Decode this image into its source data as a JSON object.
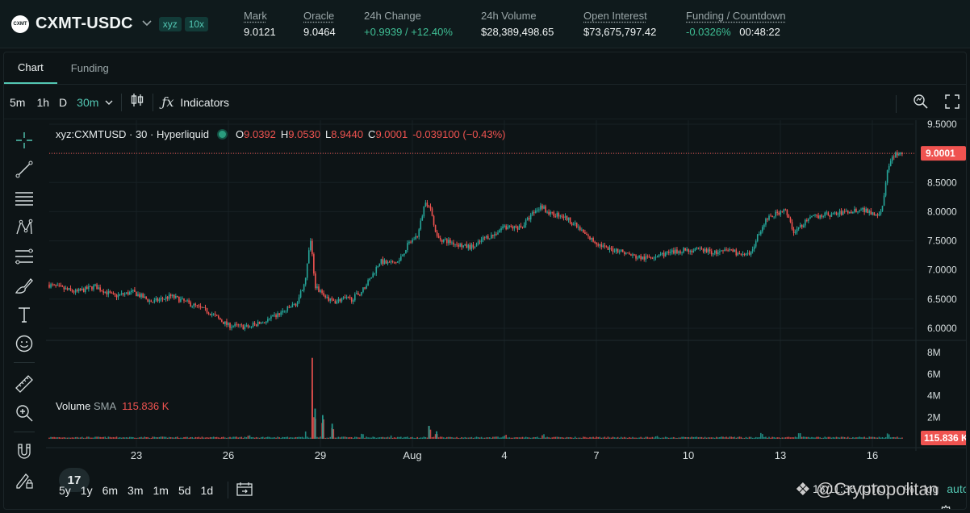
{
  "header": {
    "coin_logo_text": "CXMT",
    "pair": "CXMT-USDC",
    "badges": [
      "xyz",
      "10x"
    ],
    "stats": [
      {
        "label": "Mark",
        "value": "9.0121",
        "underline": true,
        "positive": false
      },
      {
        "label": "Oracle",
        "value": "9.0464",
        "underline": true,
        "positive": false
      },
      {
        "label": "24h Change",
        "value": "+0.9939 / +12.40%",
        "underline": false,
        "positive": true
      },
      {
        "label": "24h Volume",
        "value": "$28,389,498.65",
        "underline": false,
        "positive": false
      },
      {
        "label": "Open Interest",
        "value": "$73,675,797.42",
        "underline": true,
        "positive": false
      },
      {
        "label": "Funding / Countdown",
        "value_rate": "-0.0326%",
        "value_countdown": "00:48:22",
        "underline": true,
        "positive": true
      }
    ]
  },
  "tabs": [
    {
      "label": "Chart",
      "active": true
    },
    {
      "label": "Funding",
      "active": false
    }
  ],
  "toolbar": {
    "timeframes": [
      "5m",
      "1h",
      "D",
      "30m"
    ],
    "active_timeframe": "30m",
    "indicators_label": "Indicators"
  },
  "legend": {
    "symbol": "xyz:CXMTUSD · 30 · Hyperliquid",
    "o_label": "O",
    "o": "9.0392",
    "h_label": "H",
    "h": "9.0530",
    "l_label": "L",
    "l": "8.9440",
    "c_label": "C",
    "c": "9.0001",
    "change": "-0.039100 (−0.43%)"
  },
  "volume_legend": {
    "label": "Volume",
    "sma_label": "SMA",
    "value": "115.836 K"
  },
  "tv_logo": "17",
  "bottom": {
    "ranges": [
      "5y",
      "1y",
      "6m",
      "3m",
      "1m",
      "5d",
      "1d"
    ],
    "time": "18:11:36 (UTC)",
    "percent": "%",
    "log": "log",
    "auto": "auto"
  },
  "watermark": "@Cryptopolitan",
  "colors": {
    "up": "#26a69a",
    "down": "#ef5350",
    "accent": "#53c7b3",
    "price_line": "#ef5350"
  },
  "chart_data": {
    "type": "candlestick",
    "symbol": "xyz:CXMTUSD",
    "interval": "30",
    "x_ticks": [
      "23",
      "26",
      "29",
      "Aug",
      "4",
      "7",
      "10",
      "13",
      "16"
    ],
    "y_ticks": [
      "9.5000",
      "9.0000",
      "8.5000",
      "8.0000",
      "7.5000",
      "7.0000",
      "6.5000",
      "6.0000"
    ],
    "ylim": [
      5.85,
      9.55
    ],
    "last_price": "9.0001",
    "price_path": [
      [
        0.0,
        6.75
      ],
      [
        1.5,
        6.62
      ],
      [
        2.5,
        6.72
      ],
      [
        3.5,
        6.55
      ],
      [
        4.5,
        6.62
      ],
      [
        5.5,
        6.45
      ],
      [
        6.5,
        6.55
      ],
      [
        7.5,
        6.42
      ],
      [
        8.5,
        6.28
      ],
      [
        9.5,
        6.05
      ],
      [
        10.5,
        6.02
      ],
      [
        11.5,
        6.12
      ],
      [
        12.5,
        6.3
      ],
      [
        13.2,
        6.45
      ],
      [
        13.6,
        6.9
      ],
      [
        13.85,
        7.55
      ],
      [
        14.1,
        6.7
      ],
      [
        14.5,
        6.6
      ],
      [
        15.0,
        6.45
      ],
      [
        15.5,
        6.5
      ],
      [
        16.0,
        6.5
      ],
      [
        16.5,
        6.62
      ],
      [
        17.0,
        6.85
      ],
      [
        17.5,
        7.15
      ],
      [
        18.0,
        7.1
      ],
      [
        18.5,
        7.15
      ],
      [
        19.0,
        7.45
      ],
      [
        19.5,
        7.6
      ],
      [
        19.9,
        8.2
      ],
      [
        20.2,
        8.0
      ],
      [
        20.5,
        7.55
      ],
      [
        21.0,
        7.5
      ],
      [
        21.5,
        7.45
      ],
      [
        22.0,
        7.4
      ],
      [
        22.5,
        7.4
      ],
      [
        23.0,
        7.55
      ],
      [
        23.5,
        7.6
      ],
      [
        24.0,
        7.75
      ],
      [
        24.5,
        7.72
      ],
      [
        25.0,
        7.75
      ],
      [
        25.5,
        7.95
      ],
      [
        26.0,
        8.1
      ],
      [
        26.5,
        7.95
      ],
      [
        27.0,
        7.95
      ],
      [
        27.5,
        7.85
      ],
      [
        28.0,
        7.7
      ],
      [
        28.5,
        7.55
      ],
      [
        29.0,
        7.45
      ],
      [
        29.5,
        7.35
      ],
      [
        30.0,
        7.35
      ],
      [
        30.5,
        7.28
      ],
      [
        31.0,
        7.22
      ],
      [
        31.5,
        7.2
      ],
      [
        32.0,
        7.25
      ],
      [
        32.5,
        7.28
      ],
      [
        33.0,
        7.3
      ],
      [
        33.5,
        7.35
      ],
      [
        34.0,
        7.33
      ],
      [
        34.5,
        7.35
      ],
      [
        35.0,
        7.3
      ],
      [
        35.5,
        7.3
      ],
      [
        36.0,
        7.35
      ],
      [
        36.5,
        7.25
      ],
      [
        37.0,
        7.25
      ],
      [
        37.4,
        7.6
      ],
      [
        37.8,
        7.85
      ],
      [
        38.3,
        7.95
      ],
      [
        38.8,
        8.05
      ],
      [
        39.3,
        7.65
      ],
      [
        39.8,
        7.8
      ],
      [
        40.3,
        7.9
      ],
      [
        40.8,
        7.95
      ],
      [
        41.3,
        7.95
      ],
      [
        41.8,
        7.98
      ],
      [
        42.3,
        8.0
      ],
      [
        42.8,
        8.05
      ],
      [
        43.3,
        8.0
      ],
      [
        43.7,
        7.95
      ],
      [
        44.0,
        8.1
      ],
      [
        44.2,
        8.7
      ],
      [
        44.4,
        8.85
      ],
      [
        44.6,
        9.0
      ]
    ],
    "price_x_range": [
      0,
      45
    ],
    "volume_y_ticks": [
      "8M",
      "6M",
      "4M",
      "2M"
    ],
    "volume_ylim": [
      0,
      8
    ],
    "volume_sma_last": "115.836 K",
    "volume_spikes": [
      [
        13.85,
        7.5
      ],
      [
        14.0,
        2.8
      ],
      [
        14.4,
        2.2
      ],
      [
        14.9,
        1.4
      ],
      [
        20.0,
        1.2
      ],
      [
        20.4,
        0.7
      ],
      [
        13.5,
        0.8
      ],
      [
        26.0,
        0.5
      ],
      [
        37.5,
        0.6
      ],
      [
        39.5,
        0.6
      ],
      [
        44.2,
        0.6
      ],
      [
        24.0,
        0.4
      ],
      [
        16.5,
        0.5
      ],
      [
        18.0,
        0.4
      ],
      [
        10.5,
        0.35
      ],
      [
        32.0,
        0.3
      ]
    ]
  }
}
